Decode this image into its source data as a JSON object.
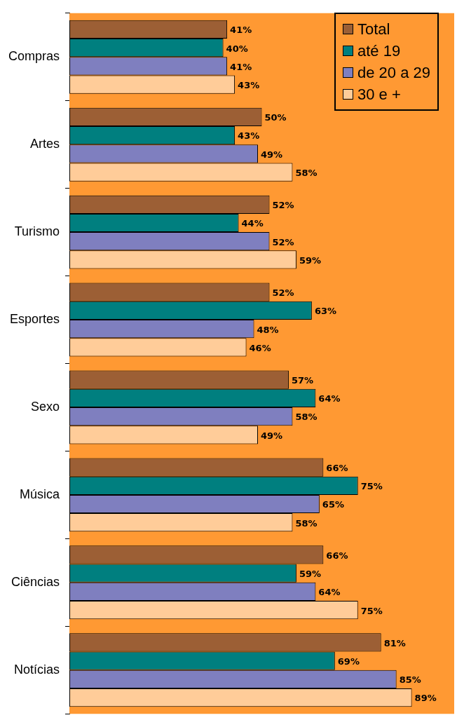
{
  "chart_data": {
    "type": "bar",
    "orientation": "horizontal",
    "categories": [
      "Compras",
      "Artes",
      "Turismo",
      "Esportes",
      "Sexo",
      "Música",
      "Ciências",
      "Notícias"
    ],
    "series": [
      {
        "name": "Total",
        "color": "#9c5f35",
        "values": [
          41,
          50,
          52,
          52,
          57,
          66,
          66,
          81
        ],
        "value_labels": [
          "41%",
          "50%",
          "52%",
          "52%",
          "57%",
          "66%",
          "66%",
          "81%"
        ]
      },
      {
        "name": "até 19",
        "color": "#007f7f",
        "values": [
          40,
          43,
          44,
          63,
          64,
          75,
          59,
          69
        ],
        "value_labels": [
          "40%",
          "43%",
          "44%",
          "63%",
          "64%",
          "75%",
          "59%",
          "69%"
        ]
      },
      {
        "name": "de 20 a 29",
        "color": "#7f7fbf",
        "values": [
          41,
          49,
          52,
          48,
          58,
          65,
          64,
          85
        ],
        "value_labels": [
          "41%",
          "49%",
          "52%",
          "48%",
          "58%",
          "65%",
          "64%",
          "85%"
        ]
      },
      {
        "name": "30 e +",
        "color": "#ffcc99",
        "values": [
          43,
          58,
          59,
          46,
          49,
          58,
          75,
          89
        ],
        "value_labels": [
          "43%",
          "58%",
          "59%",
          "46%",
          "49%",
          "58%",
          "75%",
          "89%"
        ]
      }
    ],
    "legend": "top right",
    "grid": false
  }
}
